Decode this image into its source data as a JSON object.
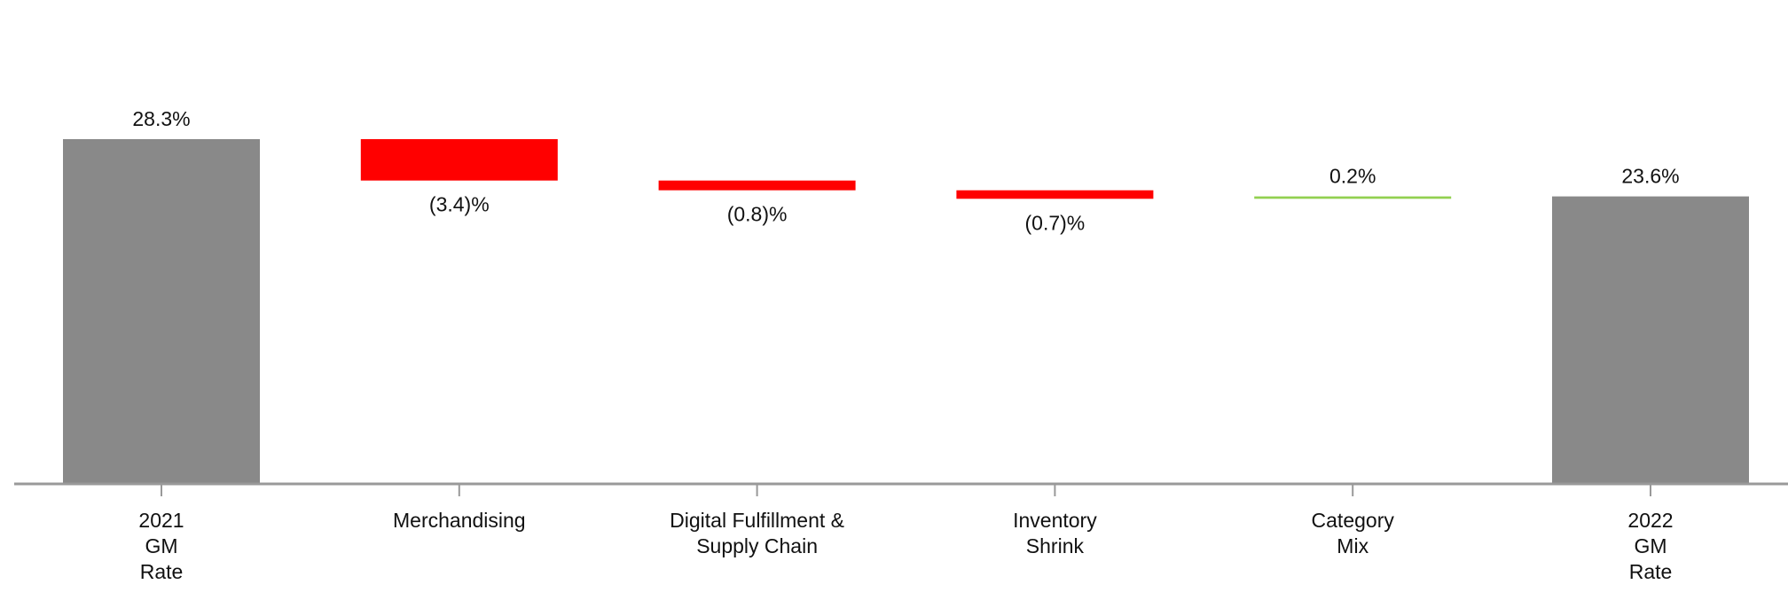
{
  "chart_data": {
    "type": "bar",
    "subtype": "waterfall",
    "title": "",
    "xlabel": "",
    "ylabel": "",
    "grid": false,
    "legend": "none",
    "categories": [
      [
        "2021",
        "GM",
        "Rate"
      ],
      [
        "Merchandising"
      ],
      [
        "Digital Fulfillment &",
        "Supply Chain"
      ],
      [
        "Inventory",
        "Shrink"
      ],
      [
        "Category",
        "Mix"
      ],
      [
        "2022",
        "GM",
        "Rate"
      ]
    ],
    "bars": [
      {
        "kind": "total",
        "start": 0,
        "end": 28.3,
        "value": 28.3,
        "label": "28.3%"
      },
      {
        "kind": "delta",
        "start": 28.3,
        "end": 24.9,
        "value": -3.4,
        "label": "(3.4)%"
      },
      {
        "kind": "delta",
        "start": 24.9,
        "end": 24.1,
        "value": -0.8,
        "label": "(0.8)%"
      },
      {
        "kind": "delta",
        "start": 24.1,
        "end": 23.4,
        "value": -0.7,
        "label": "(0.7)%"
      },
      {
        "kind": "delta",
        "start": 23.4,
        "end": 23.6,
        "value": 0.2,
        "label": "0.2%"
      },
      {
        "kind": "total",
        "start": 0,
        "end": 23.6,
        "value": 23.6,
        "label": "23.6%"
      }
    ],
    "colors": {
      "total": "#898989",
      "decrease": "#ff0000",
      "increase": "#92d050",
      "axis": "#999999"
    }
  }
}
